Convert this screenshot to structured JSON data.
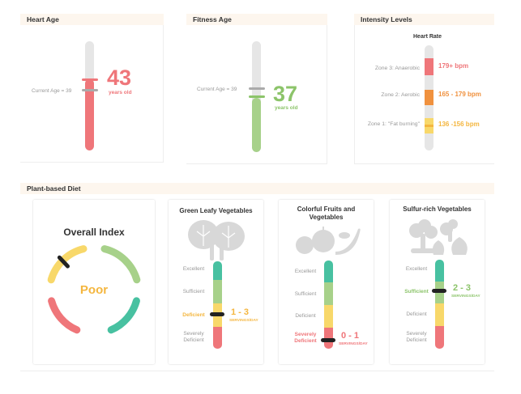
{
  "colors": {
    "red": "#ef767a",
    "orange": "#f0913e",
    "yellow": "#f8d86a",
    "green": "#a7d18a",
    "teal": "#48c1a1",
    "amber": "#f4b63f",
    "gray": "#e6e6e6"
  },
  "heart_age": {
    "title": "Heart Age",
    "current_label": "Current Age = 39",
    "value": "43",
    "unit": "years old"
  },
  "fitness_age": {
    "title": "Fitness Age",
    "current_label": "Current Age = 39",
    "value": "37",
    "unit": "years old"
  },
  "intensity": {
    "title": "Intensity Levels",
    "subtitle": "Heart Rate",
    "zones": [
      {
        "label": "Zone 3: Anaerobic",
        "value": "179+ bpm"
      },
      {
        "label": "Zone 2: Aerobic",
        "value": "165 - 179 bpm"
      },
      {
        "label": "Zone 1: \"Fat burning\"",
        "value": "136 -156 bpm"
      }
    ]
  },
  "diet": {
    "title": "Plant-based Diet",
    "overall": {
      "title": "Overall Index",
      "status": "Poor"
    },
    "levels": [
      "Excellent",
      "Sufficient",
      "Deficient",
      "Severely Deficient"
    ],
    "categories": [
      {
        "title": "Green Leafy Vegetables",
        "icon": "leafy-greens-icon",
        "highlight_level": "Deficient",
        "servings": "1 - 3",
        "unit": "SERVINGS/DAY"
      },
      {
        "title": "Colorful Fruits and Vegetables",
        "icon": "fruits-icon",
        "highlight_level": "Severely Deficient",
        "servings": "0 - 1",
        "unit": "SERVINGS/DAY"
      },
      {
        "title": "Sulfur-rich Vegetables",
        "icon": "broccoli-garlic-icon",
        "highlight_level": "Sufficient",
        "servings": "2 - 3",
        "unit": "SERVINGS/DAY"
      }
    ]
  }
}
